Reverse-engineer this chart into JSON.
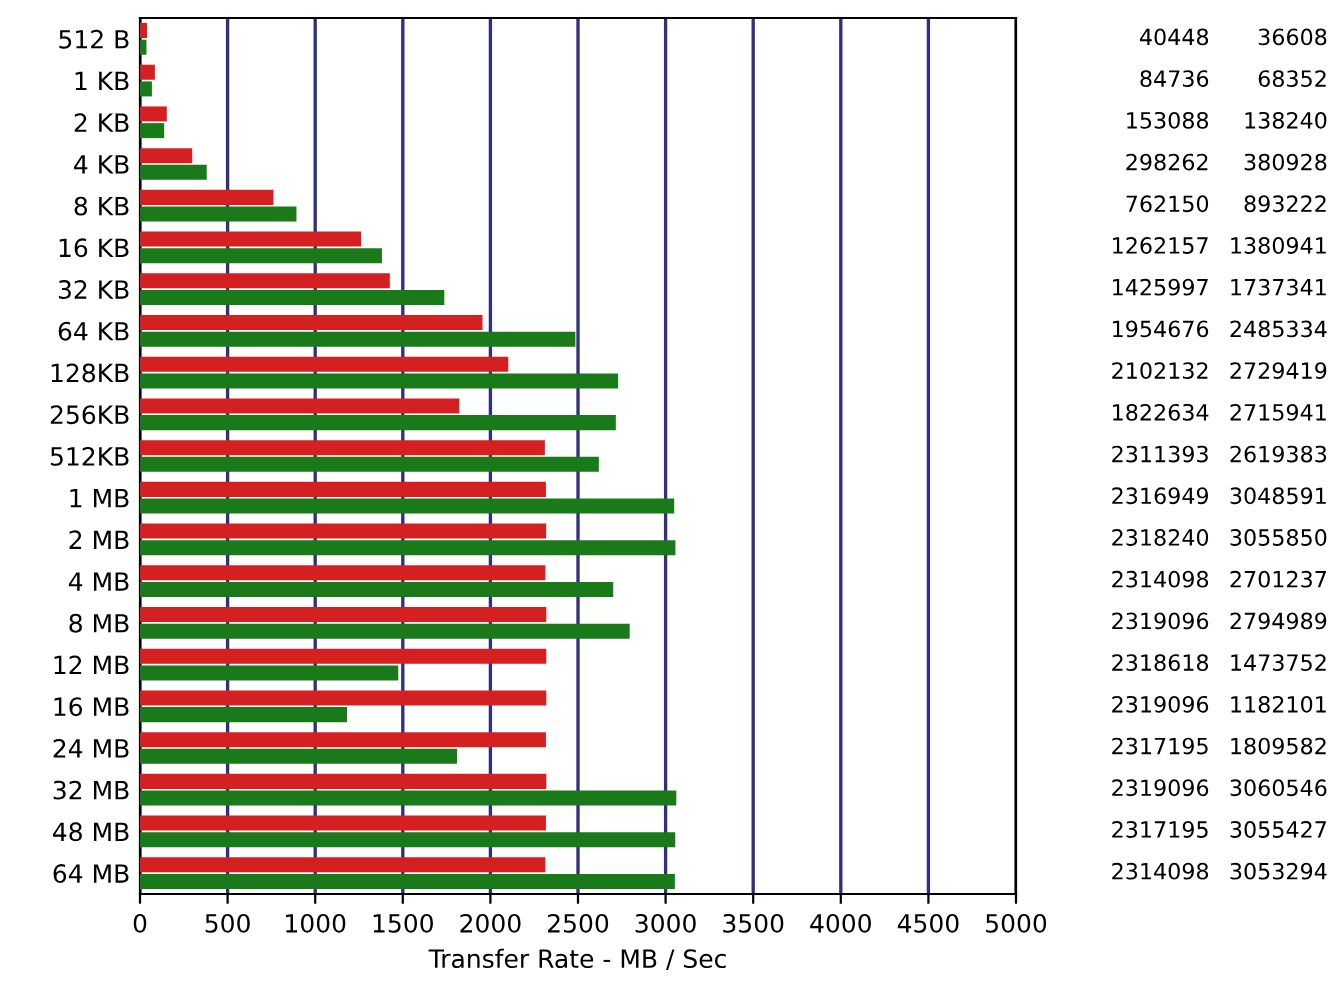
{
  "chart_data": {
    "type": "bar",
    "orientation": "horizontal",
    "xlabel": "Transfer Rate - MB / Sec",
    "categories": [
      "512 B",
      "1 KB",
      "2 KB",
      "4 KB",
      "8 KB",
      "16 KB",
      "32 KB",
      "64 KB",
      "128KB",
      "256KB",
      "512KB",
      "1 MB",
      "2 MB",
      "4 MB",
      "8 MB",
      "12 MB",
      "16 MB",
      "24 MB",
      "32 MB",
      "48 MB",
      "64 MB"
    ],
    "series": [
      {
        "color": "#d42020",
        "values": [
          40,
          85,
          153,
          298,
          762,
          1262,
          1426,
          1955,
          2102,
          1823,
          2311,
          2317,
          2318,
          2314,
          2319,
          2319,
          2319,
          2317,
          2319,
          2317,
          2314
        ]
      },
      {
        "color": "#1a7a1a",
        "values": [
          37,
          68,
          138,
          381,
          893,
          1381,
          1737,
          2485,
          2729,
          2716,
          2619,
          3049,
          3056,
          2701,
          2795,
          1474,
          1182,
          1810,
          3061,
          3055,
          3053
        ]
      }
    ],
    "annotations": [
      "40448",
      "36608",
      "84736",
      "68352",
      "153088",
      "138240",
      "298262",
      "380928",
      "762150",
      "893222",
      "1262157",
      "1380941",
      "1425997",
      "1737341",
      "1954676",
      "2485334",
      "2102132",
      "2729419",
      "1822634",
      "2715941",
      "2311393",
      "2619383",
      "2316949",
      "3048591",
      "2318240",
      "3055850",
      "2314098",
      "2701237",
      "2319096",
      "2794989",
      "2318618",
      "1473752",
      "2319096",
      "1182101",
      "2317195",
      "1809582",
      "2319096",
      "3060546",
      "2317195",
      "3055427",
      "2314098",
      "3053294"
    ],
    "xlim": [
      0,
      5000
    ],
    "xticks": [
      0,
      500,
      1000,
      1500,
      2000,
      2500,
      3000,
      3500,
      4000,
      4500,
      5000
    ],
    "grid": "x"
  }
}
